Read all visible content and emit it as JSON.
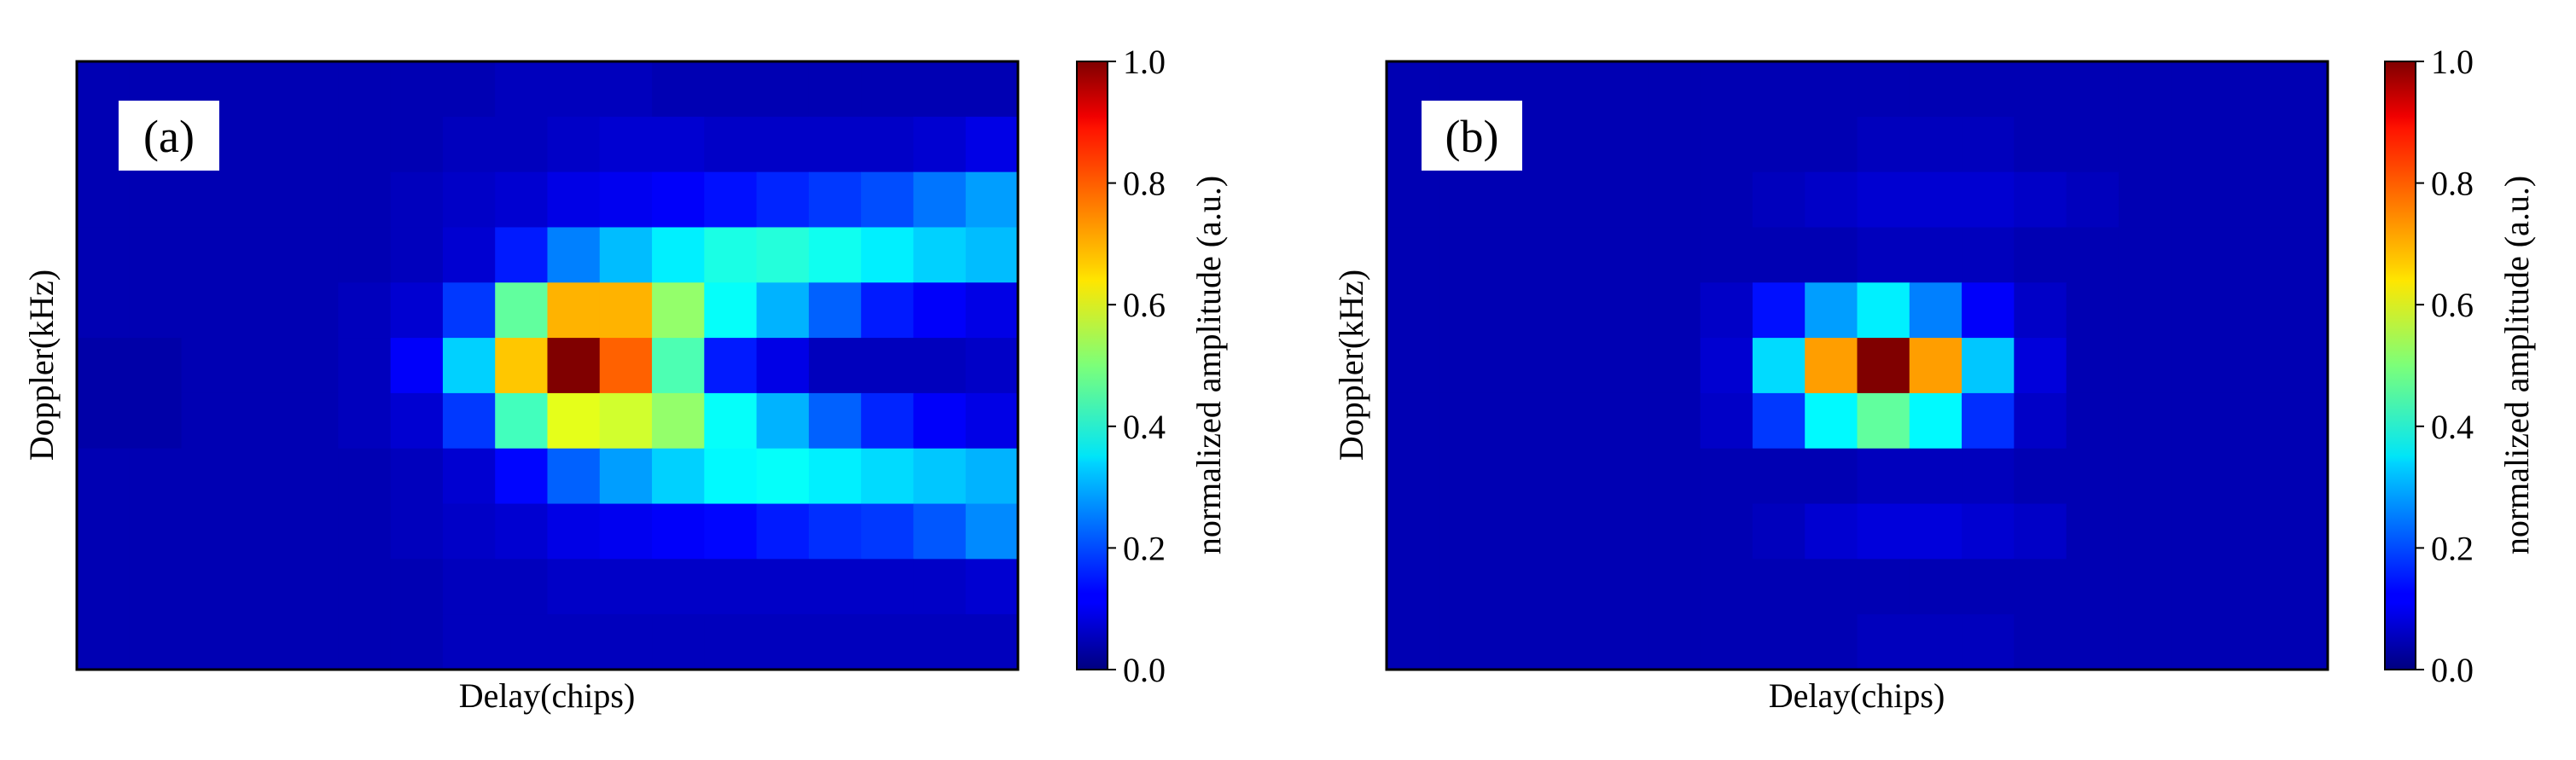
{
  "chart_data": [
    {
      "type": "heatmap",
      "panel_label": "(a)",
      "xlabel": "Delay(chips)",
      "ylabel": "Doppler(kHz)",
      "colorbar_label": "normalized amplitude (a.u.)",
      "colorbar_ticks": [
        "0.0",
        "0.2",
        "0.4",
        "0.6",
        "0.8",
        "1.0"
      ],
      "colorbar_range": [
        0.0,
        1.0
      ],
      "colormap": "jet",
      "values": [
        [
          0.05,
          0.05,
          0.05,
          0.05,
          0.05,
          0.05,
          0.05,
          0.05,
          0.06,
          0.06,
          0.06,
          0.05,
          0.05,
          0.05,
          0.05,
          0.05,
          0.05,
          0.05
        ],
        [
          0.05,
          0.05,
          0.05,
          0.05,
          0.05,
          0.05,
          0.05,
          0.06,
          0.06,
          0.07,
          0.08,
          0.08,
          0.07,
          0.07,
          0.07,
          0.07,
          0.08,
          0.1
        ],
        [
          0.05,
          0.05,
          0.05,
          0.05,
          0.05,
          0.05,
          0.06,
          0.07,
          0.08,
          0.1,
          0.11,
          0.12,
          0.14,
          0.16,
          0.18,
          0.2,
          0.24,
          0.28
        ],
        [
          0.05,
          0.05,
          0.05,
          0.05,
          0.05,
          0.05,
          0.06,
          0.08,
          0.15,
          0.25,
          0.31,
          0.36,
          0.4,
          0.41,
          0.39,
          0.36,
          0.33,
          0.31
        ],
        [
          0.05,
          0.05,
          0.05,
          0.05,
          0.05,
          0.06,
          0.08,
          0.18,
          0.47,
          0.7,
          0.7,
          0.52,
          0.38,
          0.3,
          0.22,
          0.15,
          0.12,
          0.1
        ],
        [
          0.04,
          0.04,
          0.05,
          0.05,
          0.05,
          0.06,
          0.12,
          0.33,
          0.68,
          1.0,
          0.78,
          0.45,
          0.15,
          0.1,
          0.06,
          0.06,
          0.06,
          0.07
        ],
        [
          0.04,
          0.04,
          0.05,
          0.05,
          0.05,
          0.06,
          0.08,
          0.18,
          0.44,
          0.6,
          0.58,
          0.52,
          0.38,
          0.3,
          0.22,
          0.16,
          0.12,
          0.1
        ],
        [
          0.05,
          0.05,
          0.05,
          0.05,
          0.05,
          0.05,
          0.06,
          0.08,
          0.13,
          0.22,
          0.28,
          0.33,
          0.37,
          0.38,
          0.36,
          0.34,
          0.32,
          0.3
        ],
        [
          0.05,
          0.05,
          0.05,
          0.05,
          0.05,
          0.05,
          0.06,
          0.07,
          0.08,
          0.1,
          0.11,
          0.12,
          0.13,
          0.15,
          0.17,
          0.18,
          0.21,
          0.26
        ],
        [
          0.05,
          0.05,
          0.05,
          0.05,
          0.05,
          0.05,
          0.05,
          0.06,
          0.06,
          0.07,
          0.07,
          0.07,
          0.07,
          0.07,
          0.07,
          0.07,
          0.07,
          0.08
        ],
        [
          0.05,
          0.05,
          0.05,
          0.05,
          0.05,
          0.05,
          0.05,
          0.06,
          0.06,
          0.06,
          0.06,
          0.06,
          0.06,
          0.06,
          0.06,
          0.06,
          0.06,
          0.06
        ]
      ]
    },
    {
      "type": "heatmap",
      "panel_label": "(b)",
      "xlabel": "Delay(chips)",
      "ylabel": "Doppler(kHz)",
      "colorbar_label": "normalized amplitude (a.u.)",
      "colorbar_ticks": [
        "0.0",
        "0.2",
        "0.4",
        "0.6",
        "0.8",
        "1.0"
      ],
      "colorbar_range": [
        0.0,
        1.0
      ],
      "colormap": "jet",
      "values": [
        [
          0.05,
          0.05,
          0.05,
          0.05,
          0.05,
          0.05,
          0.05,
          0.05,
          0.05,
          0.05,
          0.05,
          0.05,
          0.05,
          0.05,
          0.05,
          0.05,
          0.05,
          0.05
        ],
        [
          0.05,
          0.05,
          0.05,
          0.05,
          0.05,
          0.05,
          0.05,
          0.05,
          0.05,
          0.06,
          0.06,
          0.06,
          0.05,
          0.05,
          0.05,
          0.05,
          0.05,
          0.05
        ],
        [
          0.05,
          0.05,
          0.05,
          0.05,
          0.05,
          0.05,
          0.05,
          0.06,
          0.07,
          0.08,
          0.08,
          0.08,
          0.07,
          0.06,
          0.05,
          0.05,
          0.05,
          0.05
        ],
        [
          0.05,
          0.05,
          0.05,
          0.05,
          0.05,
          0.05,
          0.05,
          0.05,
          0.05,
          0.06,
          0.06,
          0.06,
          0.05,
          0.05,
          0.05,
          0.05,
          0.05,
          0.05
        ],
        [
          0.05,
          0.05,
          0.05,
          0.05,
          0.05,
          0.05,
          0.07,
          0.14,
          0.28,
          0.36,
          0.25,
          0.12,
          0.07,
          0.05,
          0.05,
          0.05,
          0.05,
          0.05
        ],
        [
          0.05,
          0.05,
          0.05,
          0.05,
          0.05,
          0.05,
          0.08,
          0.34,
          0.72,
          1.0,
          0.72,
          0.32,
          0.09,
          0.05,
          0.05,
          0.05,
          0.05,
          0.05
        ],
        [
          0.05,
          0.05,
          0.05,
          0.05,
          0.05,
          0.05,
          0.07,
          0.18,
          0.37,
          0.47,
          0.37,
          0.17,
          0.07,
          0.05,
          0.05,
          0.05,
          0.05,
          0.05
        ],
        [
          0.05,
          0.05,
          0.05,
          0.05,
          0.05,
          0.05,
          0.05,
          0.05,
          0.05,
          0.06,
          0.06,
          0.06,
          0.05,
          0.05,
          0.05,
          0.05,
          0.05,
          0.05
        ],
        [
          0.05,
          0.05,
          0.05,
          0.05,
          0.05,
          0.05,
          0.05,
          0.06,
          0.08,
          0.09,
          0.09,
          0.08,
          0.07,
          0.05,
          0.05,
          0.05,
          0.05,
          0.05
        ],
        [
          0.05,
          0.05,
          0.05,
          0.05,
          0.05,
          0.05,
          0.05,
          0.05,
          0.05,
          0.05,
          0.05,
          0.05,
          0.05,
          0.05,
          0.05,
          0.05,
          0.05,
          0.05
        ],
        [
          0.05,
          0.05,
          0.05,
          0.05,
          0.05,
          0.05,
          0.05,
          0.05,
          0.05,
          0.06,
          0.06,
          0.06,
          0.05,
          0.05,
          0.05,
          0.05,
          0.05,
          0.05
        ]
      ]
    }
  ]
}
